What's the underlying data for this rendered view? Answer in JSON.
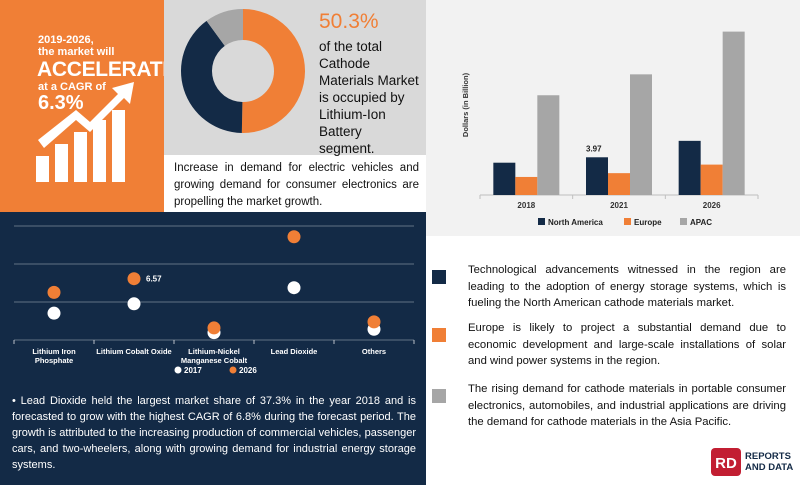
{
  "headline": {
    "years": "2019-2026,",
    "line2": "the market will",
    "accent": "ACCELERATE",
    "line4": "at a CAGR of",
    "cagr": "6.3%"
  },
  "share": {
    "value": "50.3%",
    "description": "of the total Cathode Materials Market is occupied by Lithium-Ion Battery segment."
  },
  "growth_text": "Increase in demand for electric vehicles and growing demand for consumer electronics are propelling the market growth.",
  "bullet_paragraph": "• Lead Dioxide held the largest market share of 37.3% in the year 2018 and is forecasted to grow with the highest CAGR of 6.8% during the forecast period. The growth is attributed to the increasing production of commercial vehicles, passenger cars, and two-wheelers, along with growing demand for industrial energy storage systems.",
  "insights": [
    {
      "color": "#132a46",
      "text": "Technological advancements witnessed in the region are leading to the adoption of energy storage systems, which is fueling the North American cathode materials market."
    },
    {
      "color": "#f07f36",
      "text": "Europe is likely to project a substantial demand due to economic development and large-scale installations of solar and wind power systems in the region."
    },
    {
      "color": "#a6a6a6",
      "text": "The rising demand for cathode materials in portable consumer electronics, automobiles, and industrial applications are driving the demand for cathode materials in the Asia Pacific."
    }
  ],
  "logo": {
    "line1": "REPORTS",
    "line2": "AND DATA",
    "mark": "RD"
  },
  "colors": {
    "navy": "#132a46",
    "orange": "#f07f36",
    "grey": "#a6a6a6",
    "white": "#ffffff"
  },
  "icons": [
    "growth-arrow-icon",
    "bar-growth-icon"
  ],
  "chart_data": [
    {
      "type": "pie",
      "title": "",
      "slices": [
        {
          "label": "Lithium-Ion Battery",
          "value": 50.3,
          "color": "#f07f36"
        },
        {
          "label": "",
          "value": 39.7,
          "color": "#132a46"
        },
        {
          "label": "",
          "value": 10.0,
          "color": "#a6a6a6"
        }
      ]
    },
    {
      "type": "scatter",
      "title": "",
      "categories": [
        "Lithium Iron Phosphate",
        "Lithium Cobalt Oxide",
        "Lithium-Nickel Manganese Cobalt",
        "Lead Dioxide",
        "Others"
      ],
      "series": [
        {
          "name": "2017",
          "color": "#ffffff",
          "values": [
            4.0,
            4.7,
            2.55,
            5.9,
            2.8
          ]
        },
        {
          "name": "2026",
          "color": "#f07f36",
          "values": [
            5.55,
            6.57,
            2.9,
            9.7,
            3.35
          ]
        }
      ],
      "data_labels": [
        {
          "series": "2026",
          "category": "Lithium Cobalt Oxide",
          "text": "6.57"
        }
      ],
      "ylim": [
        2,
        10.5
      ],
      "grid": true,
      "legend": "bottom"
    },
    {
      "type": "bar",
      "title": "",
      "xlabel": "",
      "ylabel": "Dollars (in Billion)",
      "categories": [
        "2018",
        "2021",
        "2026"
      ],
      "series": [
        {
          "name": "North America",
          "color": "#132a46",
          "values": [
            3.4,
            3.97,
            5.7
          ]
        },
        {
          "name": "Europe",
          "color": "#f07f36",
          "values": [
            1.9,
            2.3,
            3.2
          ]
        },
        {
          "name": "APAC",
          "color": "#a6a6a6",
          "values": [
            10.5,
            12.7,
            17.2
          ]
        }
      ],
      "data_labels": [
        {
          "series": "North America",
          "category": "2021",
          "text": "3.97"
        }
      ],
      "ylim": [
        0,
        18
      ],
      "grid": false,
      "legend": "bottom"
    }
  ]
}
